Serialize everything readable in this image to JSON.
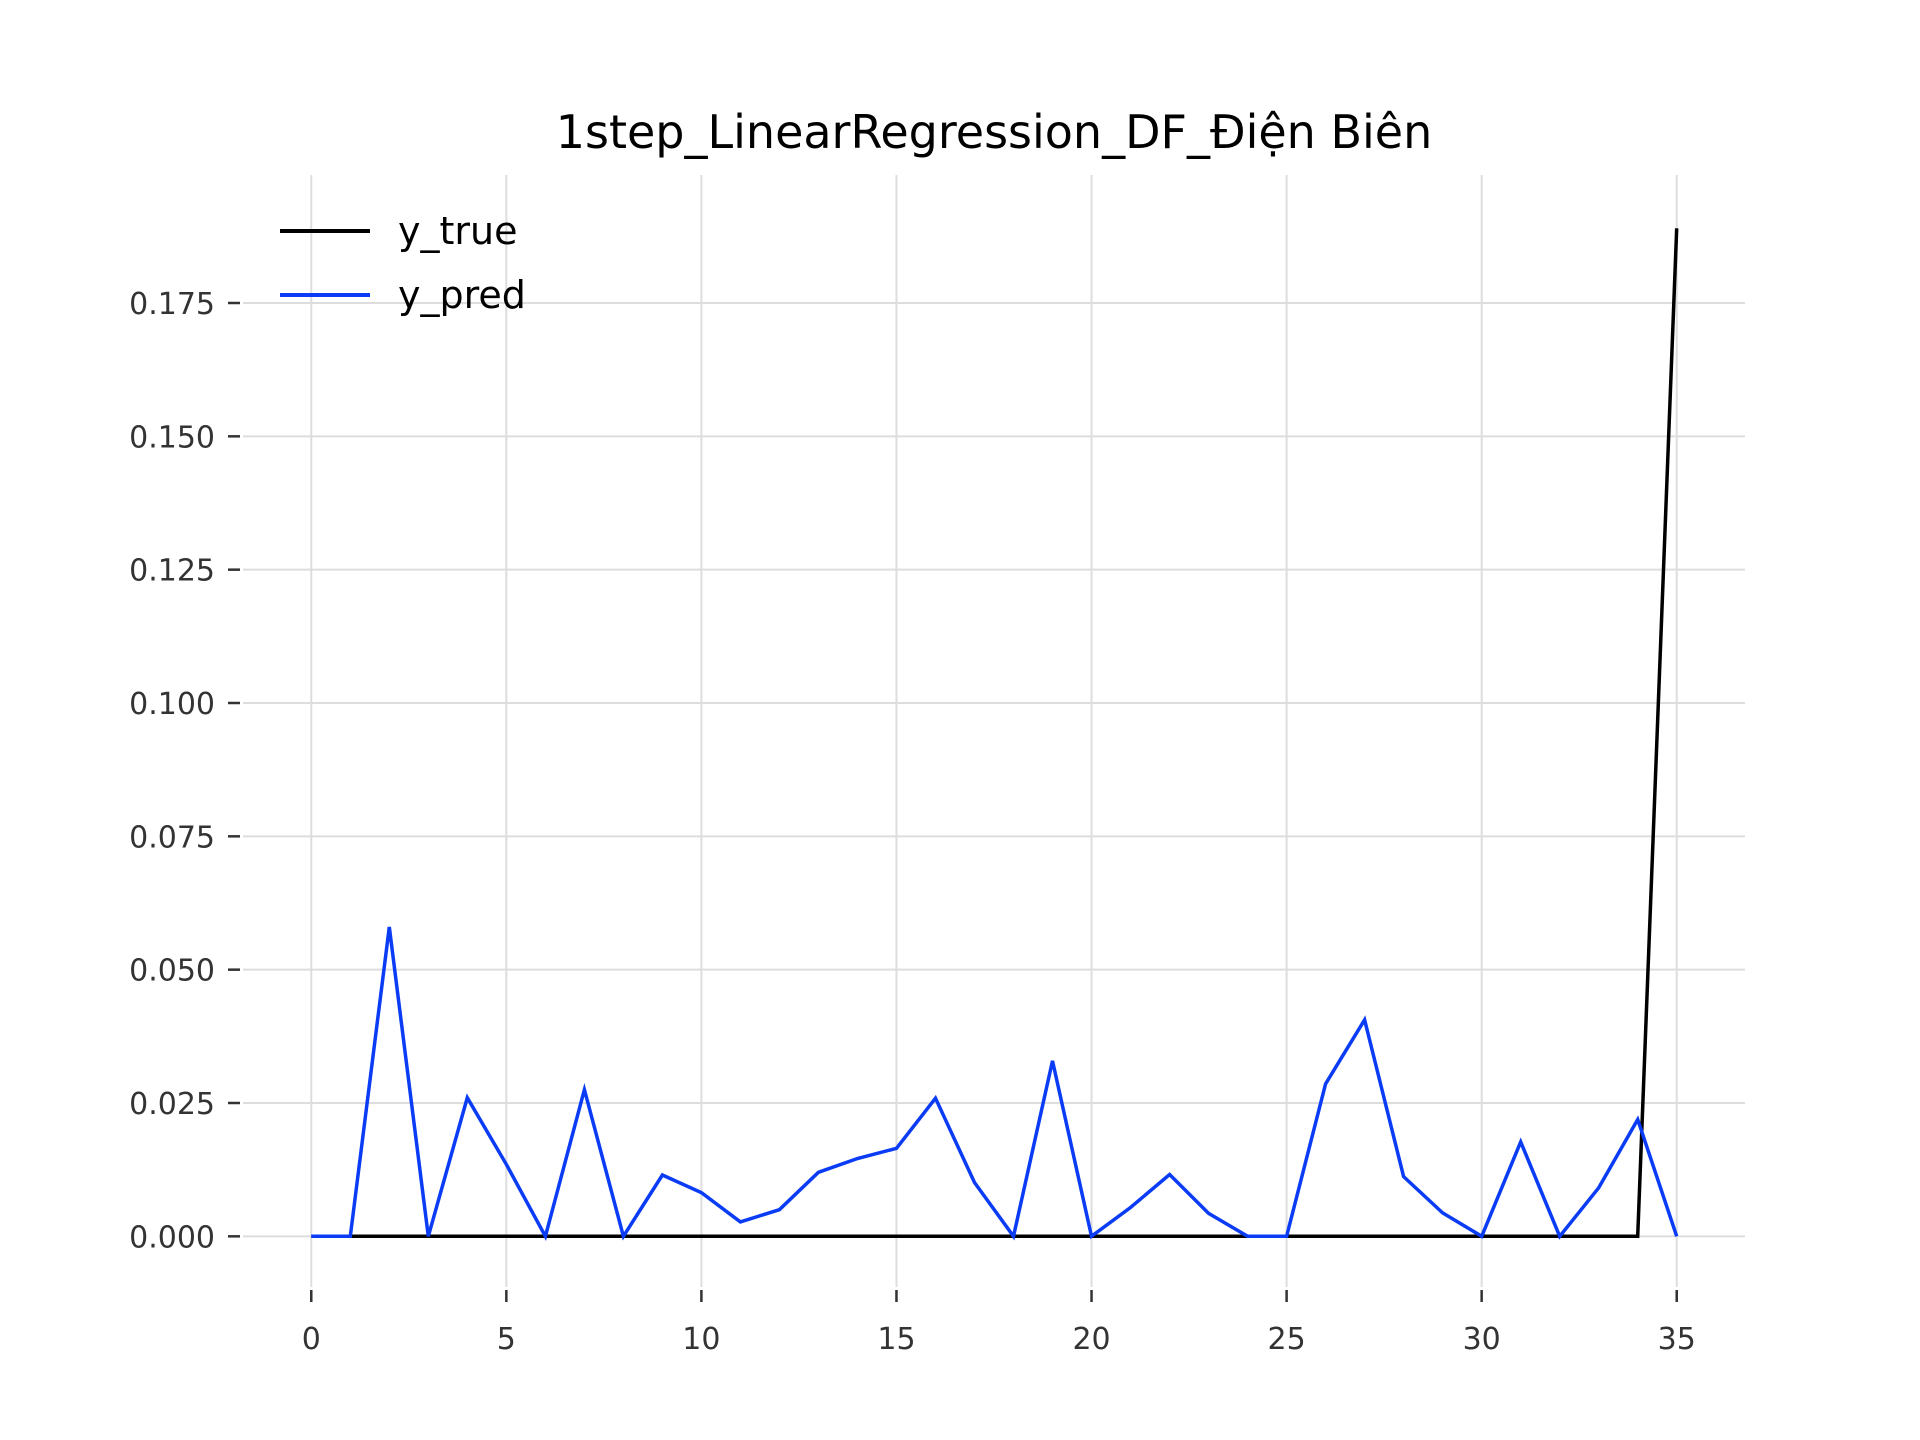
{
  "chart_data": {
    "type": "line",
    "title": "1step_LinearRegression_DF_Điện Biên",
    "xlabel": "",
    "ylabel": "",
    "xlim": [
      -1.75,
      36.75
    ],
    "ylim": [
      -0.0095,
      0.199
    ],
    "x_ticks": [
      0,
      5,
      10,
      15,
      20,
      25,
      30,
      35
    ],
    "x_tick_labels": [
      "0",
      "5",
      "10",
      "15",
      "20",
      "25",
      "30",
      "35"
    ],
    "y_ticks": [
      0,
      0.025,
      0.05,
      0.075,
      0.1,
      0.125,
      0.15,
      0.175
    ],
    "y_tick_labels": [
      "0.000",
      "0.025",
      "0.050",
      "0.075",
      "0.100",
      "0.125",
      "0.150",
      "0.175"
    ],
    "grid": true,
    "legend_position": "top-left",
    "x": [
      0,
      1,
      2,
      3,
      4,
      5,
      6,
      7,
      8,
      9,
      10,
      11,
      12,
      13,
      14,
      15,
      16,
      17,
      18,
      19,
      20,
      21,
      22,
      23,
      24,
      25,
      26,
      27,
      28,
      29,
      30,
      31,
      32,
      33,
      34,
      35
    ],
    "series": [
      {
        "name": "y_true",
        "color": "#000000",
        "values": [
          0,
          0,
          0,
          0,
          0,
          0,
          0,
          0,
          0,
          0,
          0,
          0,
          0,
          0,
          0,
          0,
          0,
          0,
          0,
          0,
          0,
          0,
          0,
          0,
          0,
          0,
          0,
          0,
          0,
          0,
          0,
          0,
          0,
          0,
          0,
          0.189
        ]
      },
      {
        "name": "y_pred",
        "color": "#0a3cf5",
        "values": [
          0,
          0,
          0.058,
          0,
          0.026,
          0.0135,
          0,
          0.0275,
          0,
          0.0115,
          0.0082,
          0.0027,
          0.005,
          0.012,
          0.0146,
          0.0165,
          0.0259,
          0.0101,
          0,
          0.0329,
          0,
          0.0054,
          0.0116,
          0.0043,
          0,
          0,
          0.0286,
          0.0406,
          0.0112,
          0.0044,
          0,
          0.0177,
          0,
          0.0091,
          0.0219,
          0
        ]
      }
    ]
  }
}
